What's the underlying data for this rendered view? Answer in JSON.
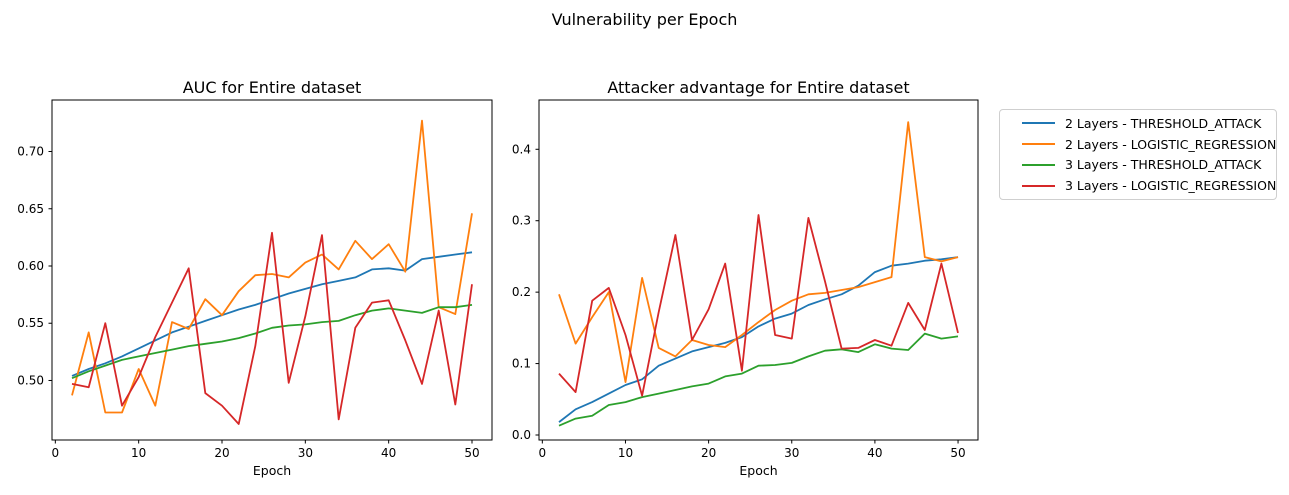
{
  "figure": {
    "suptitle": "Vulnerability per Epoch",
    "background_color": "#ffffff",
    "text_color": "#000000",
    "spine_color": "#000000"
  },
  "legend": {
    "position": "outside-upper-right",
    "border_color": "#cfcfcf",
    "items": [
      {
        "label": "2 Layers - THRESHOLD_ATTACK",
        "color": "#1f77b4"
      },
      {
        "label": "2 Layers - LOGISTIC_REGRESSION",
        "color": "#ff7f0e"
      },
      {
        "label": "3 Layers - THRESHOLD_ATTACK",
        "color": "#2ca02c"
      },
      {
        "label": "3 Layers - LOGISTIC_REGRESSION",
        "color": "#d62728"
      }
    ]
  },
  "chart_data": [
    {
      "type": "line",
      "title": "AUC for Entire dataset",
      "xlabel": "Epoch",
      "grid": false,
      "x": [
        2,
        4,
        6,
        8,
        10,
        12,
        14,
        16,
        18,
        20,
        22,
        24,
        26,
        28,
        30,
        32,
        34,
        36,
        38,
        40,
        42,
        44,
        46,
        48,
        50
      ],
      "xlim": [
        -0.4,
        52.4
      ],
      "ylim": [
        0.448,
        0.745
      ],
      "xticks": {
        "values": [
          0,
          10,
          20,
          30,
          40,
          50
        ],
        "labels": [
          "0",
          "10",
          "20",
          "30",
          "40",
          "50"
        ]
      },
      "yticks": {
        "values": [
          0.5,
          0.55,
          0.6,
          0.65,
          0.7
        ],
        "labels": [
          "0.50",
          "0.55",
          "0.60",
          "0.65",
          "0.70"
        ]
      },
      "series": [
        {
          "name": "2 Layers - THRESHOLD_ATTACK",
          "color": "#1f77b4",
          "values": [
            0.504,
            0.51,
            0.515,
            0.521,
            0.528,
            0.535,
            0.542,
            0.547,
            0.552,
            0.557,
            0.562,
            0.566,
            0.571,
            0.576,
            0.58,
            0.584,
            0.587,
            0.59,
            0.597,
            0.598,
            0.596,
            0.606,
            0.608,
            0.61,
            0.612
          ]
        },
        {
          "name": "2 Layers - LOGISTIC_REGRESSION",
          "color": "#ff7f0e",
          "values": [
            0.487,
            0.542,
            0.472,
            0.472,
            0.51,
            0.478,
            0.551,
            0.545,
            0.571,
            0.557,
            0.578,
            0.592,
            0.593,
            0.59,
            0.603,
            0.61,
            0.597,
            0.622,
            0.606,
            0.619,
            0.595,
            0.727,
            0.564,
            0.558,
            0.646
          ]
        },
        {
          "name": "3 Layers - THRESHOLD_ATTACK",
          "color": "#2ca02c",
          "values": [
            0.502,
            0.508,
            0.513,
            0.518,
            0.521,
            0.524,
            0.527,
            0.53,
            0.532,
            0.534,
            0.537,
            0.541,
            0.546,
            0.548,
            0.549,
            0.551,
            0.552,
            0.557,
            0.561,
            0.563,
            0.561,
            0.559,
            0.564,
            0.564,
            0.566
          ]
        },
        {
          "name": "3 Layers - LOGISTIC_REGRESSION",
          "color": "#d62728",
          "values": [
            0.497,
            0.494,
            0.55,
            0.478,
            0.503,
            0.538,
            0.568,
            0.598,
            0.489,
            0.478,
            0.462,
            0.53,
            0.629,
            0.498,
            0.556,
            0.627,
            0.466,
            0.546,
            0.568,
            0.57,
            0.535,
            0.497,
            0.561,
            0.479,
            0.584
          ]
        }
      ]
    },
    {
      "type": "line",
      "title": "Attacker advantage for Entire dataset",
      "xlabel": "Epoch",
      "grid": false,
      "x": [
        2,
        4,
        6,
        8,
        10,
        12,
        14,
        16,
        18,
        20,
        22,
        24,
        26,
        28,
        30,
        32,
        34,
        36,
        38,
        40,
        42,
        44,
        46,
        48,
        50
      ],
      "xlim": [
        -0.4,
        52.4
      ],
      "ylim": [
        -0.007,
        0.469
      ],
      "xticks": {
        "values": [
          0,
          10,
          20,
          30,
          40,
          50
        ],
        "labels": [
          "0",
          "10",
          "20",
          "30",
          "40",
          "50"
        ]
      },
      "yticks": {
        "values": [
          0.0,
          0.1,
          0.2,
          0.3,
          0.4
        ],
        "labels": [
          "0.0",
          "0.1",
          "0.2",
          "0.3",
          "0.4"
        ]
      },
      "series": [
        {
          "name": "2 Layers - THRESHOLD_ATTACK",
          "color": "#1f77b4",
          "values": [
            0.018,
            0.036,
            0.046,
            0.058,
            0.07,
            0.078,
            0.097,
            0.107,
            0.117,
            0.123,
            0.129,
            0.137,
            0.152,
            0.163,
            0.17,
            0.182,
            0.19,
            0.197,
            0.209,
            0.228,
            0.237,
            0.24,
            0.244,
            0.246,
            0.249
          ]
        },
        {
          "name": "2 Layers - LOGISTIC_REGRESSION",
          "color": "#ff7f0e",
          "values": [
            0.197,
            0.128,
            0.165,
            0.2,
            0.074,
            0.22,
            0.122,
            0.11,
            0.133,
            0.126,
            0.123,
            0.14,
            0.158,
            0.175,
            0.188,
            0.197,
            0.199,
            0.203,
            0.207,
            0.214,
            0.221,
            0.438,
            0.249,
            0.243,
            0.249
          ]
        },
        {
          "name": "3 Layers - THRESHOLD_ATTACK",
          "color": "#2ca02c",
          "values": [
            0.013,
            0.023,
            0.027,
            0.042,
            0.046,
            0.053,
            0.058,
            0.063,
            0.068,
            0.072,
            0.082,
            0.086,
            0.097,
            0.098,
            0.101,
            0.11,
            0.118,
            0.12,
            0.116,
            0.127,
            0.121,
            0.119,
            0.142,
            0.135,
            0.138
          ]
        },
        {
          "name": "3 Layers - LOGISTIC_REGRESSION",
          "color": "#d62728",
          "values": [
            0.086,
            0.06,
            0.188,
            0.206,
            0.14,
            0.055,
            0.172,
            0.28,
            0.133,
            0.176,
            0.24,
            0.09,
            0.308,
            0.14,
            0.135,
            0.304,
            0.215,
            0.121,
            0.122,
            0.133,
            0.125,
            0.185,
            0.147,
            0.24,
            0.143
          ]
        }
      ]
    }
  ]
}
